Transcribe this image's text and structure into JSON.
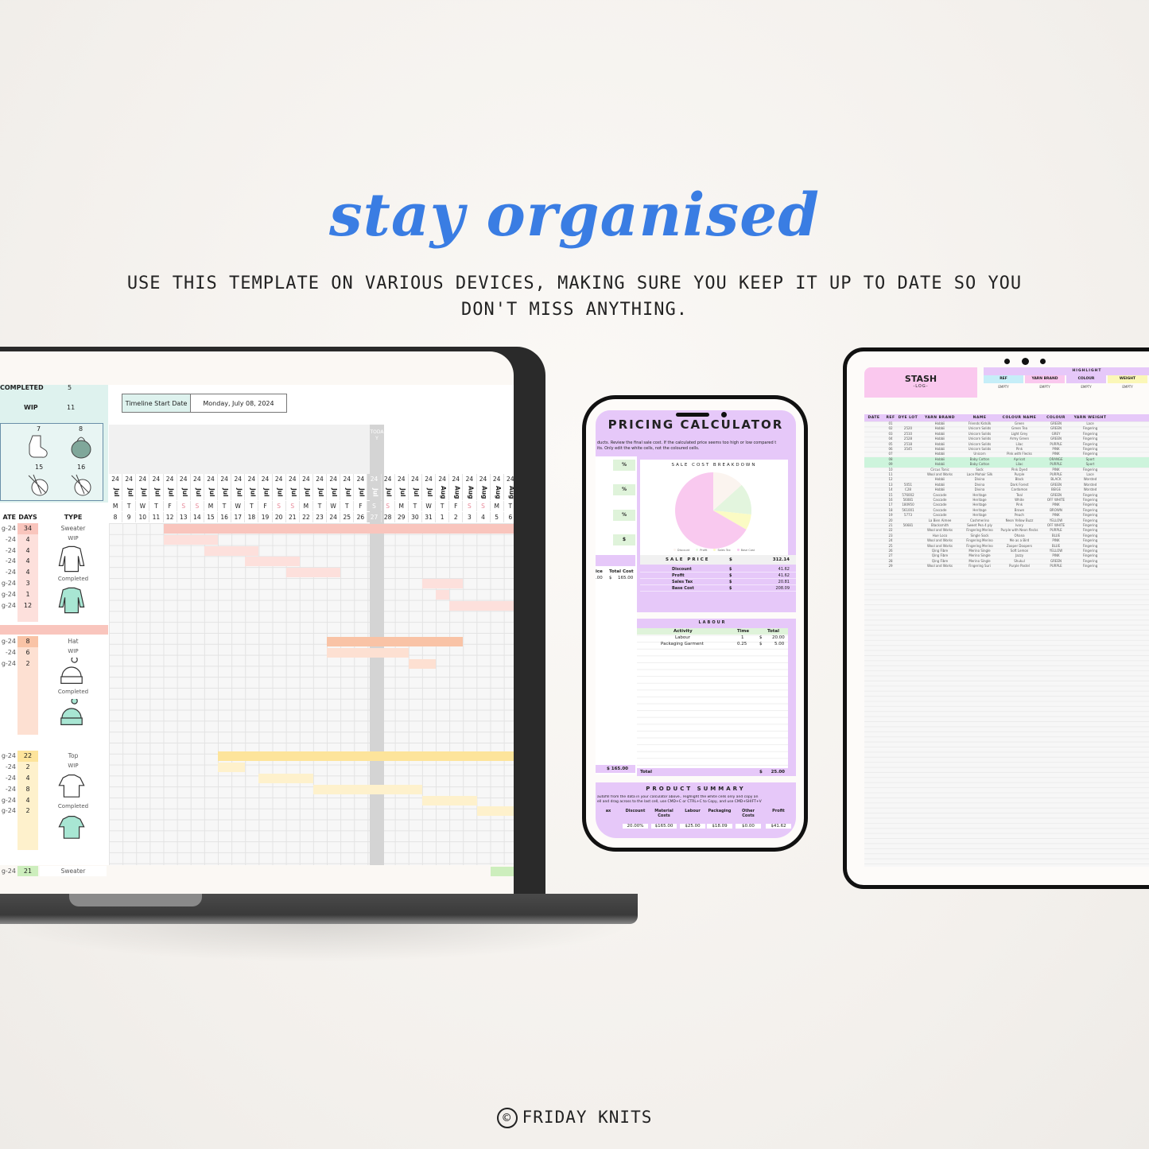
{
  "hero": {
    "title": "stay organised",
    "subtitle": "USE THIS TEMPLATE ON VARIOUS DEVICES, MAKING SURE YOU KEEP IT UP TO DATE SO YOU DON'T MISS ANYTHING.",
    "footer_symbol": "©",
    "footer": "FRIDAY KNITS"
  },
  "laptop": {
    "summary": {
      "completed_label": "COMPLETED",
      "completed_value": "5",
      "wip_label": "WIP",
      "wip_value": "11",
      "icon_numbers": [
        "7",
        "8",
        "15",
        "16"
      ]
    },
    "timeline": {
      "start_label": "Timeline Start Date",
      "start_value": "Monday, July 08, 2024",
      "today_label": "TODAY",
      "year_label": "24",
      "months": [
        "Jul",
        "Jul",
        "Jul",
        "Jul",
        "Jul",
        "Jul",
        "Jul",
        "Jul",
        "Jul",
        "Jul",
        "Jul",
        "Jul",
        "Jul",
        "Jul",
        "Jul",
        "Jul",
        "Jul",
        "Jul",
        "Jul",
        "Jul",
        "Jul",
        "Jul",
        "Jul",
        "Jul",
        "Aug",
        "Aug",
        "Aug",
        "Aug",
        "Aug",
        "Aug"
      ],
      "weekdays": [
        "M",
        "T",
        "W",
        "T",
        "F",
        "S",
        "S",
        "M",
        "T",
        "W",
        "T",
        "F",
        "S",
        "S",
        "M",
        "T",
        "W",
        "T",
        "F",
        "S",
        "S",
        "M",
        "T",
        "W",
        "T",
        "F",
        "S",
        "S",
        "M",
        "T"
      ],
      "day_numbers": [
        "8",
        "9",
        "10",
        "11",
        "12",
        "13",
        "14",
        "15",
        "16",
        "17",
        "18",
        "19",
        "20",
        "21",
        "22",
        "23",
        "24",
        "25",
        "26",
        "27",
        "28",
        "29",
        "30",
        "31",
        "1",
        "2",
        "3",
        "4",
        "5",
        "6"
      ],
      "weekend_color": "#e88a9a"
    },
    "columns": {
      "date": "ATE",
      "days": "DAYS",
      "type": "TYPE"
    },
    "groups": [
      {
        "type": "Sweater",
        "wip": "WIP",
        "completed": "Completed",
        "color": "#f9c5bd",
        "sub_color": "#fde0dc",
        "icon": "sweater-icon",
        "rows": [
          {
            "date": "g-24",
            "days": "34",
            "bar": [
              "Jul 12",
              "Aug 6"
            ]
          },
          {
            "date": "-24",
            "days": "4",
            "bar": [
              "Jul 12",
              "Jul 15"
            ]
          },
          {
            "date": "-24",
            "days": "4",
            "bar": [
              "Jul 15",
              "Jul 18"
            ]
          },
          {
            "date": "-24",
            "days": "4",
            "bar": [
              "Jul 18",
              "Jul 21"
            ]
          },
          {
            "date": "-24",
            "days": "4",
            "bar": [
              "Jul 21",
              "Jul 24"
            ]
          },
          {
            "date": "g-24",
            "days": "3",
            "bar": [
              "Jul 31",
              "Aug 2"
            ]
          },
          {
            "date": "g-24",
            "days": "1",
            "bar": [
              "Aug 1",
              "Aug 1"
            ]
          },
          {
            "date": "g-24",
            "days": "12",
            "bar": [
              "Aug 2",
              "Aug 6"
            ]
          }
        ]
      },
      {
        "type": "Hat",
        "wip": "WIP",
        "completed": "Completed",
        "color": "#f9c3a6",
        "sub_color": "#fde0d2",
        "icon": "beanie-icon",
        "rows": [
          {
            "date": "g-24",
            "days": "8",
            "bar": [
              "Jul 24",
              "Aug 2"
            ]
          },
          {
            "date": "-24",
            "days": "6",
            "bar": [
              "Jul 24",
              "Jul 29"
            ]
          },
          {
            "date": "g-24",
            "days": "2",
            "bar": [
              "Jul 30",
              "Jul 31"
            ]
          }
        ]
      },
      {
        "type": "Top",
        "wip": "WIP",
        "completed": "Completed",
        "color": "#fde49b",
        "sub_color": "#fef1cc",
        "icon": "top-icon",
        "rows": [
          {
            "date": "g-24",
            "days": "22",
            "bar": [
              "Jul 16",
              "Aug 6"
            ]
          },
          {
            "date": "-24",
            "days": "2",
            "bar": [
              "Jul 16",
              "Jul 17"
            ]
          },
          {
            "date": "-24",
            "days": "4",
            "bar": [
              "Jul 19",
              "Jul 22"
            ]
          },
          {
            "date": "-24",
            "days": "8",
            "bar": [
              "Jul 23",
              "Jul 30"
            ]
          },
          {
            "date": "g-24",
            "days": "4",
            "bar": [
              "Jul 31",
              "Aug 3"
            ]
          },
          {
            "date": "g-24",
            "days": "2",
            "bar": [
              "Aug 4",
              "Aug 6"
            ]
          }
        ]
      },
      {
        "type": "Sweater",
        "color": "#cdeebd",
        "sub_color": "#e6f6dd",
        "rows": [
          {
            "date": "g-24",
            "days": "21",
            "bar": [
              "Aug 5",
              "Aug 6"
            ]
          }
        ]
      }
    ],
    "icon_color": "#a8e6d3"
  },
  "phone": {
    "title": "PRICING CALCULATOR",
    "description": [
      "ducts. Review the final sale cost. If the calculated price seems too high or low compared t",
      "its. Only edit the white cells, not the coloured cells."
    ],
    "inputs": [
      "%",
      "%",
      "%",
      "$"
    ],
    "cost_header": [
      "ice",
      "Total Cost"
    ],
    "cost_row": [
      ".00",
      "$",
      "165.00"
    ],
    "cost_total": [
      "$",
      "165.00"
    ],
    "chart_title": "SALE COST BREAKDOWN",
    "chart_data": {
      "type": "pie",
      "categories": [
        "Discount",
        "Profit",
        "Sales Tax",
        "Base Cost"
      ],
      "values": [
        41.62,
        41.62,
        20.81,
        208.09
      ],
      "colors": [
        "#fbf4ef",
        "#e3f5de",
        "#fbfbc4",
        "#f9c9ef"
      ]
    },
    "sale_price": {
      "label": "SALE PRICE",
      "currency": "$",
      "value": "312.14"
    },
    "breakdown": [
      {
        "label": "Discount",
        "currency": "$",
        "value": "41.62"
      },
      {
        "label": "Profit",
        "currency": "$",
        "value": "41.62"
      },
      {
        "label": "Sales Tax",
        "currency": "$",
        "value": "20.81"
      },
      {
        "label": "Base Cost",
        "currency": "$",
        "value": "208.09"
      }
    ],
    "labour": {
      "title": "LABOUR",
      "headers": [
        "Activity",
        "Time",
        "Total"
      ],
      "rows": [
        [
          "Labour",
          "1",
          "$",
          "20.00"
        ],
        [
          "Packaging Garment",
          "0.25",
          "$",
          "5.00"
        ]
      ],
      "total_label": "Total",
      "total_currency": "$",
      "total_value": "25.00"
    },
    "summary": {
      "title": "PRODUCT SUMMARY",
      "description": [
        "autofill from the data in your calculator above.. Highlight the white cells only and copy an",
        "ell and drag across to the last cell, use CMD+C or CTRL+C to Copy, and use CMD+SHIFT+V"
      ],
      "headers": [
        "ax",
        "Discount",
        "Material Costs",
        "Labour",
        "Packaging",
        "Other Costs",
        "Profit"
      ],
      "values": [
        "",
        "20.00%",
        "$165.00",
        "$25.00",
        "$18.09",
        "$0.00",
        "$41.62"
      ]
    },
    "accent": "#e6c8f9"
  },
  "tablet": {
    "title": "STASH",
    "subtitle": "-LOG-",
    "highlight": {
      "label": "HIGHLIGHT",
      "items": [
        {
          "label": "REF",
          "color": "#c6eef8",
          "value": "EMPTY"
        },
        {
          "label": "YARN BRAND",
          "color": "#fac8ee",
          "value": "EMPTY"
        },
        {
          "label": "COLOUR",
          "color": "#e6c8f9",
          "value": "EMPTY"
        },
        {
          "label": "WEIGHT",
          "color": "#fbf7b8",
          "value": "EMPTY"
        },
        {
          "label": "",
          "color": "#cdf4dc",
          "value": "EMPTY"
        }
      ]
    },
    "headers": [
      "DATE",
      "REF",
      "DYE LOT",
      "YARN BRAND",
      "NAME",
      "COLOUR NAME",
      "COLOUR",
      "YARN WEIGHT"
    ],
    "rows": [
      [
        "",
        "01",
        "",
        "Hobbii",
        "Friends Kidsilk",
        "Green",
        "GREEN",
        "Lace"
      ],
      [
        "",
        "02",
        "2520",
        "Hobbii",
        "Unicorn Solids",
        "Green Tea",
        "GREEN",
        "Fingering"
      ],
      [
        "",
        "03",
        "2510",
        "Hobbii",
        "Unicorn Solids",
        "Light Grey",
        "GREY",
        "Fingering"
      ],
      [
        "",
        "04",
        "2528",
        "Hobbii",
        "Unicorn Solids",
        "Army Green",
        "GREEN",
        "Fingering"
      ],
      [
        "",
        "05",
        "2518",
        "Hobbii",
        "Unicorn Solids",
        "Lilac",
        "PURPLE",
        "Fingering"
      ],
      [
        "",
        "06",
        "3545",
        "Hobbii",
        "Unicorn Solids",
        "Pink",
        "PINK",
        "Fingering"
      ],
      [
        "",
        "07",
        "",
        "Hobbii",
        "Unicorn",
        "Pink with Flecks",
        "PINK",
        "Fingering"
      ],
      [
        "",
        "08",
        "",
        "Hobbii",
        "Baby Cotton",
        "Apricot",
        "ORANGE",
        "Sport"
      ],
      [
        "",
        "09",
        "",
        "Hobbii",
        "Baby Cotton",
        "Lilac",
        "PURPLE",
        "Sport"
      ],
      [
        "",
        "10",
        "",
        "Circus Tonic",
        "Sock",
        "Pink Dyed",
        "PINK",
        "Fingering"
      ],
      [
        "",
        "11",
        "",
        "Wool and Works",
        "Lace Mohair Silk",
        "Purple",
        "PURPLE",
        "Lace"
      ],
      [
        "",
        "12",
        "",
        "Hobbii",
        "Divina",
        "Black",
        "BLACK",
        "Worsted"
      ],
      [
        "",
        "13",
        "5051",
        "Hobbii",
        "Divina",
        "Dark Forest",
        "GREEN",
        "Worsted"
      ],
      [
        "",
        "14",
        "C28",
        "Hobbii",
        "Divina",
        "Cardamon",
        "BEIGE",
        "Worsted"
      ],
      [
        "",
        "15",
        "576002",
        "Cascade",
        "Heritage",
        "Teal",
        "GREEN",
        "Fingering"
      ],
      [
        "",
        "16",
        "56081",
        "Cascade",
        "Heritage",
        "White",
        "OFF WHITE",
        "Fingering"
      ],
      [
        "",
        "17",
        "180950",
        "Cascade",
        "Heritage",
        "Pink",
        "PINK",
        "Fingering"
      ],
      [
        "",
        "18",
        "561001",
        "Cascade",
        "Heritage",
        "Brown",
        "BROWN",
        "Fingering"
      ],
      [
        "",
        "19",
        "5773",
        "Cascade",
        "Heritage",
        "Peach",
        "PINK",
        "Fingering"
      ],
      [
        "",
        "20",
        "",
        "La Bien Aimee",
        "Cashmerino",
        "Neon Yellow Buzz",
        "YELLOW",
        "Fingering"
      ],
      [
        "",
        "21",
        "56681",
        "Blacksmith",
        "Sweet Pea 4 ply",
        "Ivory",
        "OFF WHITE",
        "Fingering"
      ],
      [
        "",
        "22",
        "",
        "Wool and Works",
        "Fingering Merino",
        "Purple with Neon flecks",
        "PURPLE",
        "Fingering"
      ],
      [
        "",
        "23",
        "",
        "Hue Loco",
        "Single Sock",
        "Ohana",
        "BLUE",
        "Fingering"
      ],
      [
        "",
        "24",
        "",
        "Wool and Works",
        "Fingering Merino",
        "Me as a Bird",
        "PINK",
        "Fingering"
      ],
      [
        "",
        "25",
        "",
        "Wool and Works",
        "Fingering Merino",
        "Zooper Doopers",
        "BLUE",
        "Fingering"
      ],
      [
        "",
        "26",
        "",
        "Qing Fibre",
        "Merino Single",
        "Soft Lemon",
        "YELLOW",
        "Fingering"
      ],
      [
        "",
        "27",
        "",
        "Qing Fibre",
        "Merino Single",
        "Jazzy",
        "PINK",
        "Fingering"
      ],
      [
        "",
        "28",
        "",
        "Qing Fibre",
        "Merino Single",
        "Shukul",
        "GREEN",
        "Fingering"
      ],
      [
        "",
        "29",
        "",
        "Wool and Works",
        "Fingering Suri",
        "Purple Pastel",
        "PURPLE",
        "Fingering"
      ]
    ],
    "highlight_rows": [
      "08",
      "09"
    ],
    "row_highlight_color": "#cdf4dc",
    "header_color": "#e6c8f9"
  }
}
